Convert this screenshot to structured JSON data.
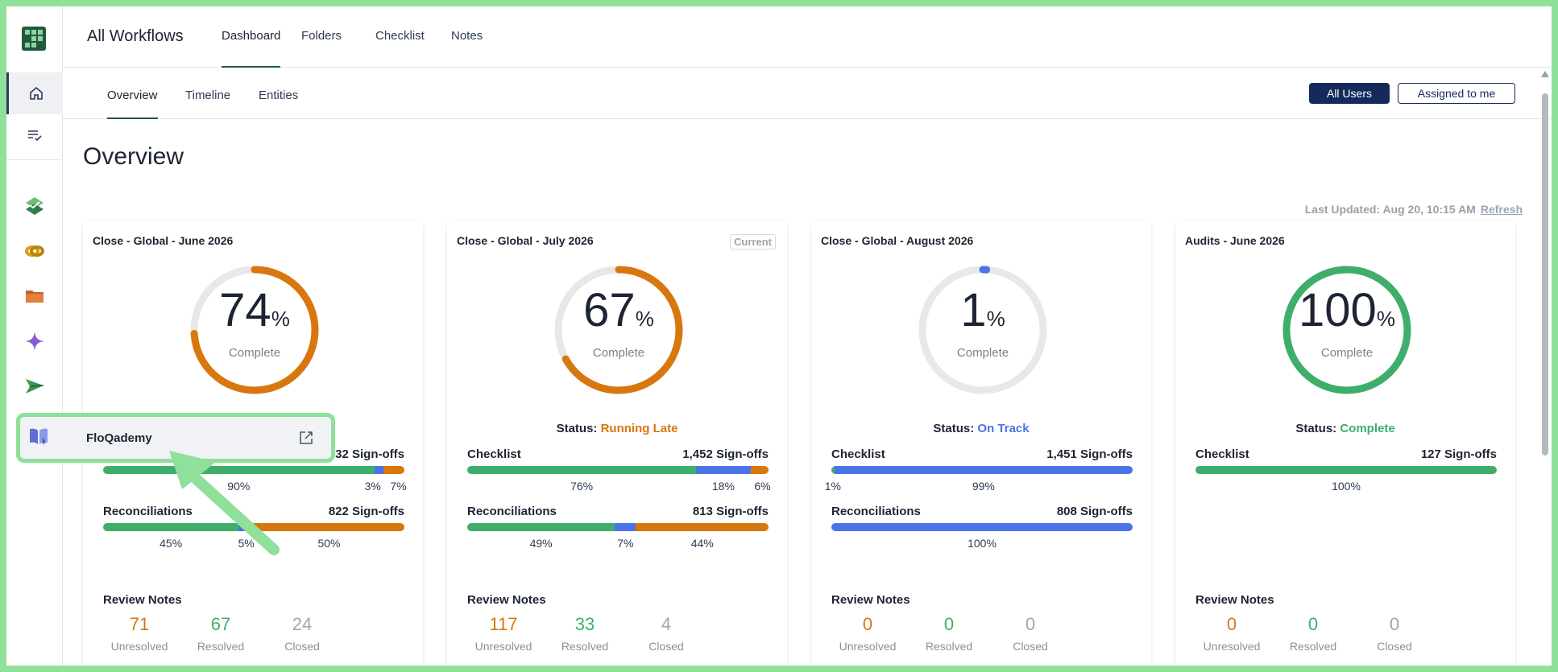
{
  "nav": {
    "title": "All Workflows",
    "tabs": [
      "Dashboard",
      "Folders",
      "Checklist",
      "Notes"
    ]
  },
  "subnav": {
    "tabs": [
      "Overview",
      "Timeline",
      "Entities"
    ],
    "all_users": "All Users",
    "assigned_to_me": "Assigned to me"
  },
  "page": {
    "title": "Overview",
    "last_updated": "Last Updated: Aug 20, 10:15 AM",
    "refresh": "Refresh"
  },
  "colors": {
    "green": "#3fae6a",
    "blue": "#4a74e8",
    "orange": "#d9770f",
    "track": "#e8e8e8",
    "navy": "#142a5c"
  },
  "sidebar_icons": [
    "home-icon",
    "list-check-icon",
    "checklist-icon",
    "reconciliation-icon",
    "folder-icon",
    "sparkle-icon",
    "send-icon",
    "book-icon"
  ],
  "tooltip": {
    "label": "FloQademy",
    "icon": "external-link-icon"
  },
  "cards": [
    {
      "title": "Close - Global - June 2026",
      "badge": "",
      "percent": 74,
      "percent_label": "Complete",
      "donut_color": "#d9770f",
      "status_label": "",
      "status_value": "",
      "status_color": "",
      "checklist": {
        "label": "Checklist",
        "signoffs": "1,532 Sign-offs",
        "segments": [
          90,
          3,
          7
        ],
        "labels": [
          "90%",
          "3%",
          "7%"
        ]
      },
      "reconciliations": {
        "label": "Reconciliations",
        "signoffs": "822 Sign-offs",
        "segments": [
          45,
          5,
          50
        ],
        "labels": [
          "45%",
          "5%",
          "50%"
        ]
      },
      "review_notes": {
        "label": "Review Notes",
        "unresolved": "71",
        "resolved": "67",
        "closed": "24",
        "unresolved_label": "Unresolved",
        "resolved_label": "Resolved",
        "closed_label": "Closed"
      }
    },
    {
      "title": "Close - Global - July 2026",
      "badge": "Current",
      "percent": 67,
      "percent_label": "Complete",
      "donut_color": "#d9770f",
      "status_label": "Status:",
      "status_value": "Running Late",
      "status_color": "#d9770f",
      "checklist": {
        "label": "Checklist",
        "signoffs": "1,452 Sign-offs",
        "segments": [
          76,
          18,
          6
        ],
        "labels": [
          "76%",
          "18%",
          "6%"
        ]
      },
      "reconciliations": {
        "label": "Reconciliations",
        "signoffs": "813 Sign-offs",
        "segments": [
          49,
          7,
          44
        ],
        "labels": [
          "49%",
          "7%",
          "44%"
        ]
      },
      "review_notes": {
        "label": "Review Notes",
        "unresolved": "117",
        "resolved": "33",
        "closed": "4",
        "unresolved_label": "Unresolved",
        "resolved_label": "Resolved",
        "closed_label": "Closed"
      }
    },
    {
      "title": "Close - Global - August 2026",
      "badge": "",
      "percent": 1,
      "percent_label": "Complete",
      "donut_color": "#4a74e8",
      "status_label": "Status:",
      "status_value": "On Track",
      "status_color": "#4a74e8",
      "checklist": {
        "label": "Checklist",
        "signoffs": "1,451 Sign-offs",
        "segments": [
          1,
          99,
          0
        ],
        "labels": [
          "1%",
          "99%",
          ""
        ]
      },
      "reconciliations": {
        "label": "Reconciliations",
        "signoffs": "808 Sign-offs",
        "segments": [
          0,
          100,
          0
        ],
        "labels": [
          "",
          "100%",
          ""
        ]
      },
      "review_notes": {
        "label": "Review Notes",
        "unresolved": "0",
        "resolved": "0",
        "closed": "0",
        "unresolved_label": "Unresolved",
        "resolved_label": "Resolved",
        "closed_label": "Closed"
      }
    },
    {
      "title": "Audits - June 2026",
      "badge": "",
      "percent": 100,
      "percent_label": "Complete",
      "donut_color": "#3fae6a",
      "status_label": "Status:",
      "status_value": "Complete",
      "status_color": "#3fae6a",
      "checklist": {
        "label": "Checklist",
        "signoffs": "127 Sign-offs",
        "segments": [
          100,
          0,
          0
        ],
        "labels": [
          "100%",
          "",
          ""
        ]
      },
      "reconciliations": null,
      "review_notes": {
        "label": "Review Notes",
        "unresolved": "0",
        "resolved": "0",
        "closed": "0",
        "unresolved_label": "Unresolved",
        "resolved_label": "Resolved",
        "closed_label": "Closed"
      }
    }
  ]
}
